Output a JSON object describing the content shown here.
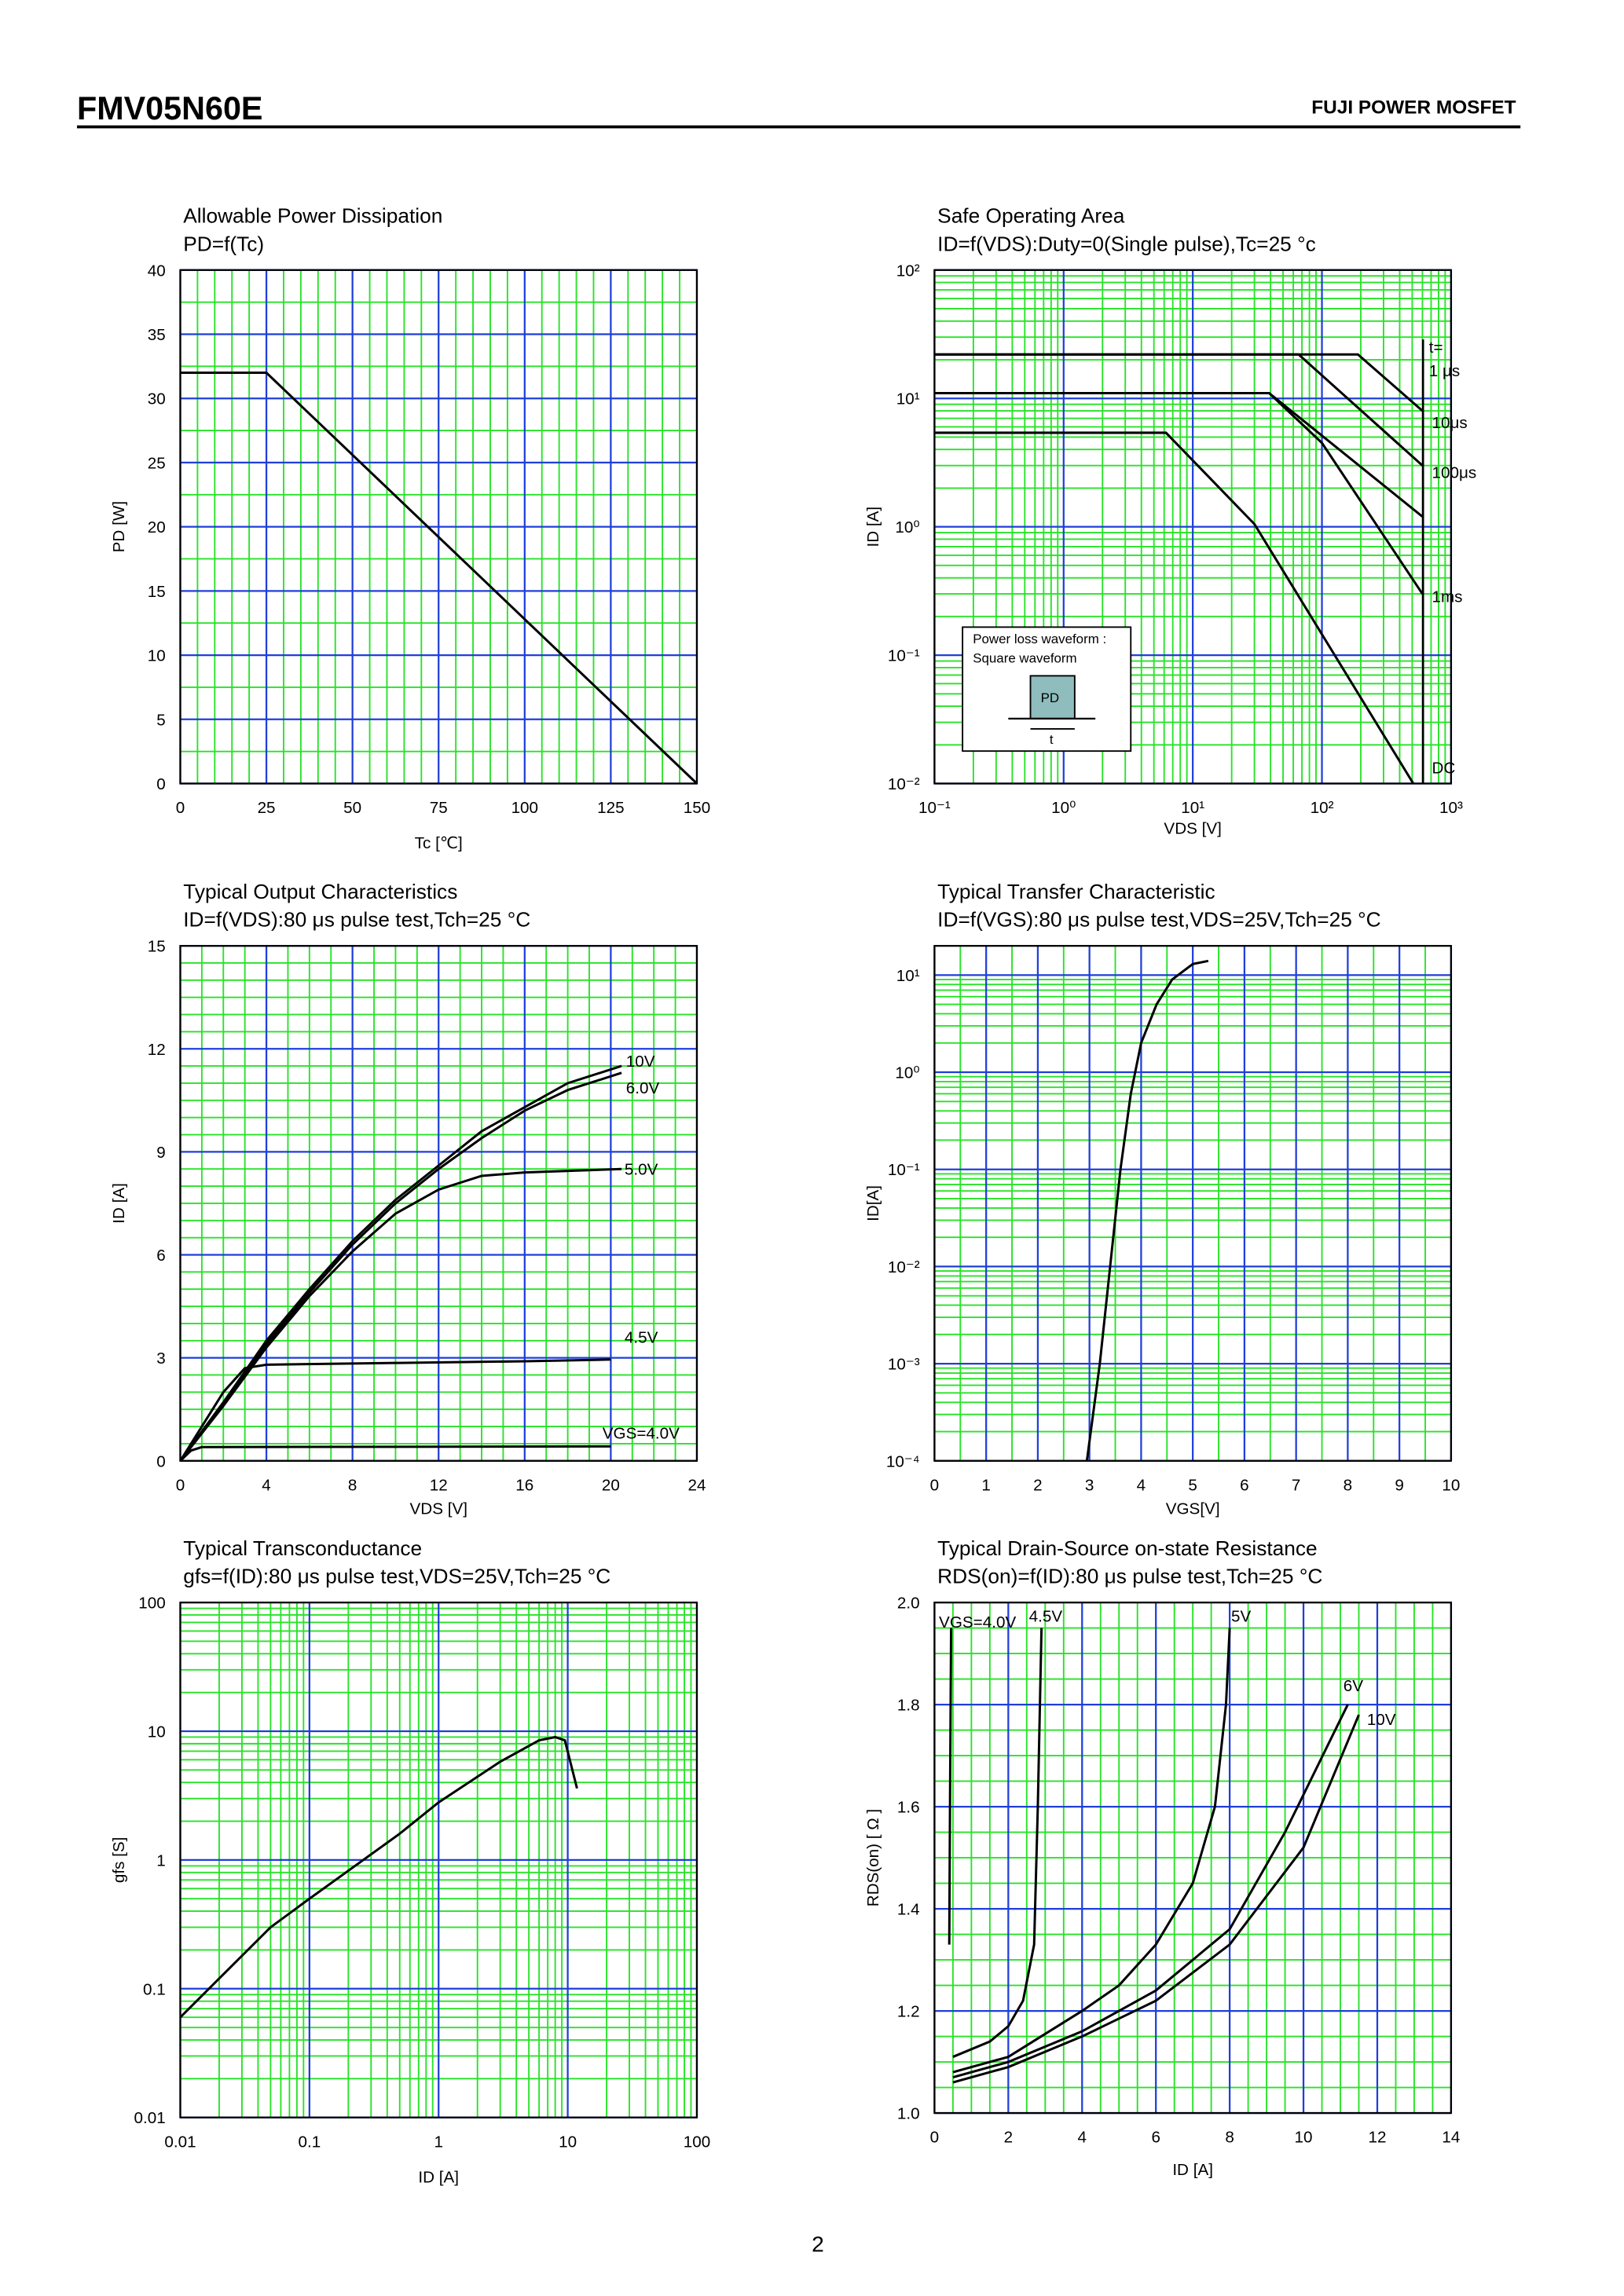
{
  "header": {
    "title": "FMV05N60E",
    "right": "FUJI POWER MOSFET"
  },
  "page_number": "2",
  "chart_data": [
    {
      "type": "line",
      "title": "Allowable Power Dissipation",
      "subtitle": "PD=f(Tc)",
      "xlabel": "Tc [℃]",
      "ylabel": "PD [W]",
      "xlim": [
        0,
        150
      ],
      "ylim": [
        0,
        40
      ],
      "xlog": false,
      "ylog": false,
      "grid": true,
      "xticks": [
        0,
        25,
        50,
        75,
        100,
        125,
        150
      ],
      "yticks": [
        0,
        5,
        10,
        15,
        20,
        25,
        30,
        35,
        40
      ],
      "xminor": [
        5,
        10,
        15,
        20,
        30,
        35,
        40,
        45,
        55,
        60,
        65,
        70,
        80,
        85,
        90,
        95,
        105,
        110,
        115,
        120,
        130,
        135,
        140,
        145
      ],
      "yminor": [
        2.5,
        7.5,
        12.5,
        17.5,
        22.5,
        27.5,
        32.5,
        37.5
      ],
      "series": [
        {
          "name": null,
          "color": "#000000",
          "x": [
            0,
            25,
            150
          ],
          "values": [
            32,
            32,
            0
          ]
        }
      ]
    },
    {
      "type": "line",
      "title": "Safe Operating Area",
      "subtitle": "ID=f(VDS):Duty=0(Single pulse),Tc=25 °c",
      "xlabel": "VDS [V]",
      "ylabel": "ID [A]",
      "xlim": [
        0.1,
        1000
      ],
      "ylim": [
        0.01,
        100
      ],
      "xlog": true,
      "ylog": true,
      "grid": true,
      "xticks": [
        {
          "value": 0.1,
          "label": "10⁻¹"
        },
        {
          "value": 1,
          "label": "10⁰"
        },
        {
          "value": 10,
          "label": "10¹"
        },
        {
          "value": 100,
          "label": "10²"
        },
        {
          "value": 1000,
          "label": "10³"
        }
      ],
      "yticks": [
        {
          "value": 0.01,
          "label": "10⁻²"
        },
        {
          "value": 0.1,
          "label": "10⁻¹"
        },
        {
          "value": 1,
          "label": "10⁰"
        },
        {
          "value": 10,
          "label": "10¹"
        },
        {
          "value": 100,
          "label": "10²"
        }
      ],
      "xminor": [
        0.2,
        0.3,
        0.4,
        0.5,
        0.6,
        0.7,
        0.8,
        0.9,
        2,
        3,
        4,
        5,
        6,
        7,
        8,
        9,
        20,
        30,
        40,
        50,
        60,
        70,
        80,
        90,
        200,
        300,
        400,
        500,
        600,
        700,
        800,
        900
      ],
      "yminor": [
        0.02,
        0.03,
        0.04,
        0.05,
        0.06,
        0.07,
        0.08,
        0.09,
        0.2,
        0.3,
        0.4,
        0.5,
        0.6,
        0.7,
        0.8,
        0.9,
        2,
        3,
        4,
        5,
        6,
        7,
        8,
        9,
        20,
        30,
        40,
        50,
        60,
        70,
        80,
        90
      ],
      "annotations": [
        "t=",
        "Power loss waveform :",
        "Square waveform",
        "PD",
        "t"
      ],
      "series": [
        {
          "name": "1 μs",
          "color": "#000000",
          "x": [
            0.1,
            190,
            600
          ],
          "values": [
            22,
            22,
            8
          ]
        },
        {
          "name": "10μs",
          "color": "#000000",
          "x": [
            0.1,
            66,
            600
          ],
          "values": [
            22,
            22,
            3
          ]
        },
        {
          "name": "100μs",
          "color": "#000000",
          "x": [
            0.1,
            39,
            600
          ],
          "values": [
            11,
            11,
            1.2
          ]
        },
        {
          "name": "1ms",
          "color": "#000000",
          "x": [
            0.1,
            39,
            100,
            600
          ],
          "values": [
            11,
            11,
            4.5,
            0.3
          ]
        },
        {
          "name": "DC",
          "color": "#000000",
          "x": [
            0.1,
            6.2,
            30,
            510
          ],
          "values": [
            5.4,
            5.4,
            1.05,
            0.01
          ]
        }
      ]
    },
    {
      "type": "line",
      "title": "Typical Output Characteristics",
      "subtitle": "ID=f(VDS):80 μs pulse test,Tch=25 °C",
      "xlabel": "VDS [V]",
      "ylabel": "ID [A]",
      "xlim": [
        0,
        24
      ],
      "ylim": [
        0,
        15
      ],
      "xlog": false,
      "ylog": false,
      "grid": true,
      "xticks": [
        0,
        4,
        8,
        12,
        16,
        20,
        24
      ],
      "yticks": [
        0,
        3,
        6,
        9,
        12,
        15
      ],
      "xminor": [
        1,
        2,
        3,
        5,
        6,
        7,
        9,
        10,
        11,
        13,
        14,
        15,
        17,
        18,
        19,
        21,
        22,
        23
      ],
      "yminor": [
        0.5,
        1,
        1.5,
        2,
        2.5,
        3.5,
        4,
        4.5,
        5,
        5.5,
        6.5,
        7,
        7.5,
        8,
        8.5,
        9.5,
        10,
        10.5,
        11,
        11.5,
        12.5,
        13,
        13.5,
        14,
        14.5
      ],
      "series": [
        {
          "name": "10V",
          "color": "#000000",
          "x": [
            0,
            2,
            4,
            6,
            8,
            10,
            12,
            14,
            16,
            18,
            20.5
          ],
          "values": [
            0,
            1.7,
            3.5,
            5,
            6.4,
            7.6,
            8.6,
            9.6,
            10.3,
            11,
            11.5
          ]
        },
        {
          "name": "6.0V",
          "color": "#000000",
          "x": [
            0,
            2,
            4,
            6,
            8,
            10,
            12,
            14,
            16,
            18,
            20.5
          ],
          "values": [
            0,
            1.7,
            3.4,
            4.9,
            6.3,
            7.5,
            8.5,
            9.4,
            10.2,
            10.8,
            11.3
          ]
        },
        {
          "name": "5.0V",
          "color": "#000000",
          "x": [
            0,
            2,
            4,
            6,
            8,
            10,
            12,
            14,
            16,
            20.5
          ],
          "values": [
            0,
            1.6,
            3.3,
            4.8,
            6.1,
            7.2,
            7.9,
            8.3,
            8.4,
            8.5
          ]
        },
        {
          "name": "4.5V",
          "color": "#000000",
          "x": [
            0,
            1,
            2,
            3,
            4,
            10,
            16,
            20
          ],
          "values": [
            0,
            1,
            2,
            2.7,
            2.8,
            2.85,
            2.9,
            2.95
          ]
        },
        {
          "name": "VGS=4.0V",
          "color": "#000000",
          "x": [
            0,
            0.5,
            1,
            20
          ],
          "values": [
            0,
            0.3,
            0.4,
            0.42
          ]
        }
      ]
    },
    {
      "type": "line",
      "title": "Typical Transfer Characteristic",
      "subtitle": "ID=f(VGS):80 μs pulse test,VDS=25V,Tch=25 °C",
      "xlabel": "VGS[V]",
      "ylabel": "ID[A]",
      "xlim": [
        0,
        10
      ],
      "ylim": [
        0.0001,
        20
      ],
      "xlog": false,
      "ylog": true,
      "grid": true,
      "xticks": [
        0,
        1,
        2,
        3,
        4,
        5,
        6,
        7,
        8,
        9,
        10
      ],
      "yticks": [
        {
          "value": 0.0001,
          "label": "10⁻⁴"
        },
        {
          "value": 0.001,
          "label": "10⁻³"
        },
        {
          "value": 0.01,
          "label": "10⁻²"
        },
        {
          "value": 0.1,
          "label": "10⁻¹"
        },
        {
          "value": 1,
          "label": "10⁰"
        },
        {
          "value": 10,
          "label": "10¹"
        }
      ],
      "xminor": [
        0.5,
        1.5,
        2.5,
        3.5,
        4.5,
        5.5,
        6.5,
        7.5,
        8.5,
        9.5
      ],
      "yminor": [
        0.0002,
        0.0003,
        0.0004,
        0.0005,
        0.0006,
        0.0007,
        0.0008,
        0.0009,
        0.002,
        0.003,
        0.004,
        0.005,
        0.006,
        0.007,
        0.008,
        0.009,
        0.02,
        0.03,
        0.04,
        0.05,
        0.06,
        0.07,
        0.08,
        0.09,
        0.2,
        0.3,
        0.4,
        0.5,
        0.6,
        0.7,
        0.8,
        0.9,
        2,
        3,
        4,
        5,
        6,
        7,
        8,
        9,
        20
      ],
      "series": [
        {
          "name": null,
          "color": "#000000",
          "x": [
            2.95,
            3.2,
            3.4,
            3.6,
            3.8,
            4.0,
            4.3,
            4.6,
            5.0,
            5.3
          ],
          "values": [
            0.0001,
            0.001,
            0.01,
            0.1,
            0.6,
            2,
            5,
            9,
            13,
            14
          ]
        }
      ]
    },
    {
      "type": "line",
      "title": "Typical Transconductance",
      "subtitle": "gfs=f(ID):80 μs pulse test,VDS=25V,Tch=25 °C",
      "xlabel": "ID [A]",
      "ylabel": "gfs [S]",
      "xlim": [
        0.01,
        100
      ],
      "ylim": [
        0.01,
        100
      ],
      "xlog": true,
      "ylog": true,
      "grid": true,
      "xticks": [
        0.01,
        0.1,
        1,
        10,
        100
      ],
      "yticks": [
        0.01,
        0.1,
        1,
        10,
        100
      ],
      "xminor": [
        0.02,
        0.03,
        0.04,
        0.05,
        0.06,
        0.07,
        0.08,
        0.09,
        0.2,
        0.3,
        0.4,
        0.5,
        0.6,
        0.7,
        0.8,
        0.9,
        2,
        3,
        4,
        5,
        6,
        7,
        8,
        9,
        20,
        30,
        40,
        50,
        60,
        70,
        80,
        90
      ],
      "yminor": [
        0.02,
        0.03,
        0.04,
        0.05,
        0.06,
        0.07,
        0.08,
        0.09,
        0.2,
        0.3,
        0.4,
        0.5,
        0.6,
        0.7,
        0.8,
        0.9,
        2,
        3,
        4,
        5,
        6,
        7,
        8,
        9,
        20,
        30,
        40,
        50,
        60,
        70,
        80,
        90
      ],
      "series": [
        {
          "name": null,
          "color": "#000000",
          "x": [
            0.01,
            0.05,
            0.1,
            0.5,
            1,
            3,
            6,
            8,
            9.5,
            11.8
          ],
          "values": [
            0.06,
            0.3,
            0.5,
            1.6,
            2.8,
            5.8,
            8.5,
            9,
            8.5,
            3.6
          ]
        }
      ]
    },
    {
      "type": "line",
      "title": "Typical Drain-Source on-state Resistance",
      "subtitle": "RDS(on)=f(ID):80 μs pulse test,Tch=25 °C",
      "xlabel": "ID [A]",
      "ylabel": "RDS(on) [ Ω ]",
      "xlim": [
        0,
        14
      ],
      "ylim": [
        1,
        2
      ],
      "xlog": false,
      "ylog": false,
      "grid": true,
      "xticks": [
        0,
        2,
        4,
        6,
        8,
        10,
        12,
        14
      ],
      "yticks": [
        {
          "value": 1,
          "label": "1.0"
        },
        1.2,
        1.4,
        1.6,
        1.8,
        {
          "value": 2,
          "label": "2.0"
        }
      ],
      "xminor": [
        0.5,
        1,
        1.5,
        2.5,
        3,
        3.5,
        4.5,
        5,
        5.5,
        6.5,
        7,
        7.5,
        8.5,
        9,
        9.5,
        10.5,
        11,
        11.5,
        12.5,
        13,
        13.5
      ],
      "yminor": [
        1.05,
        1.1,
        1.15,
        1.25,
        1.3,
        1.35,
        1.45,
        1.5,
        1.55,
        1.65,
        1.7,
        1.75,
        1.85,
        1.9,
        1.95
      ],
      "series": [
        {
          "name": "VGS=4.0V",
          "color": "#000000",
          "x": [
            0.4,
            0.42,
            0.45
          ],
          "values": [
            1.33,
            1.6,
            1.95
          ]
        },
        {
          "name": "4.5V",
          "color": "#000000",
          "x": [
            0.5,
            1.5,
            2,
            2.4,
            2.7,
            2.8,
            2.9
          ],
          "values": [
            1.11,
            1.14,
            1.17,
            1.22,
            1.33,
            1.6,
            1.95
          ]
        },
        {
          "name": "5V",
          "color": "#000000",
          "x": [
            0.5,
            2,
            4,
            5,
            6,
            7,
            7.6,
            7.9,
            8
          ],
          "values": [
            1.08,
            1.11,
            1.2,
            1.25,
            1.33,
            1.45,
            1.6,
            1.8,
            1.95
          ]
        },
        {
          "name": "6V",
          "color": "#000000",
          "x": [
            0.5,
            2,
            4,
            6,
            8,
            9.5,
            11.2
          ],
          "values": [
            1.07,
            1.1,
            1.16,
            1.24,
            1.36,
            1.55,
            1.8
          ]
        },
        {
          "name": "10V",
          "color": "#000000",
          "x": [
            0.5,
            2,
            4,
            6,
            8,
            10,
            11.5
          ],
          "values": [
            1.06,
            1.09,
            1.15,
            1.22,
            1.33,
            1.52,
            1.78
          ]
        }
      ]
    }
  ]
}
